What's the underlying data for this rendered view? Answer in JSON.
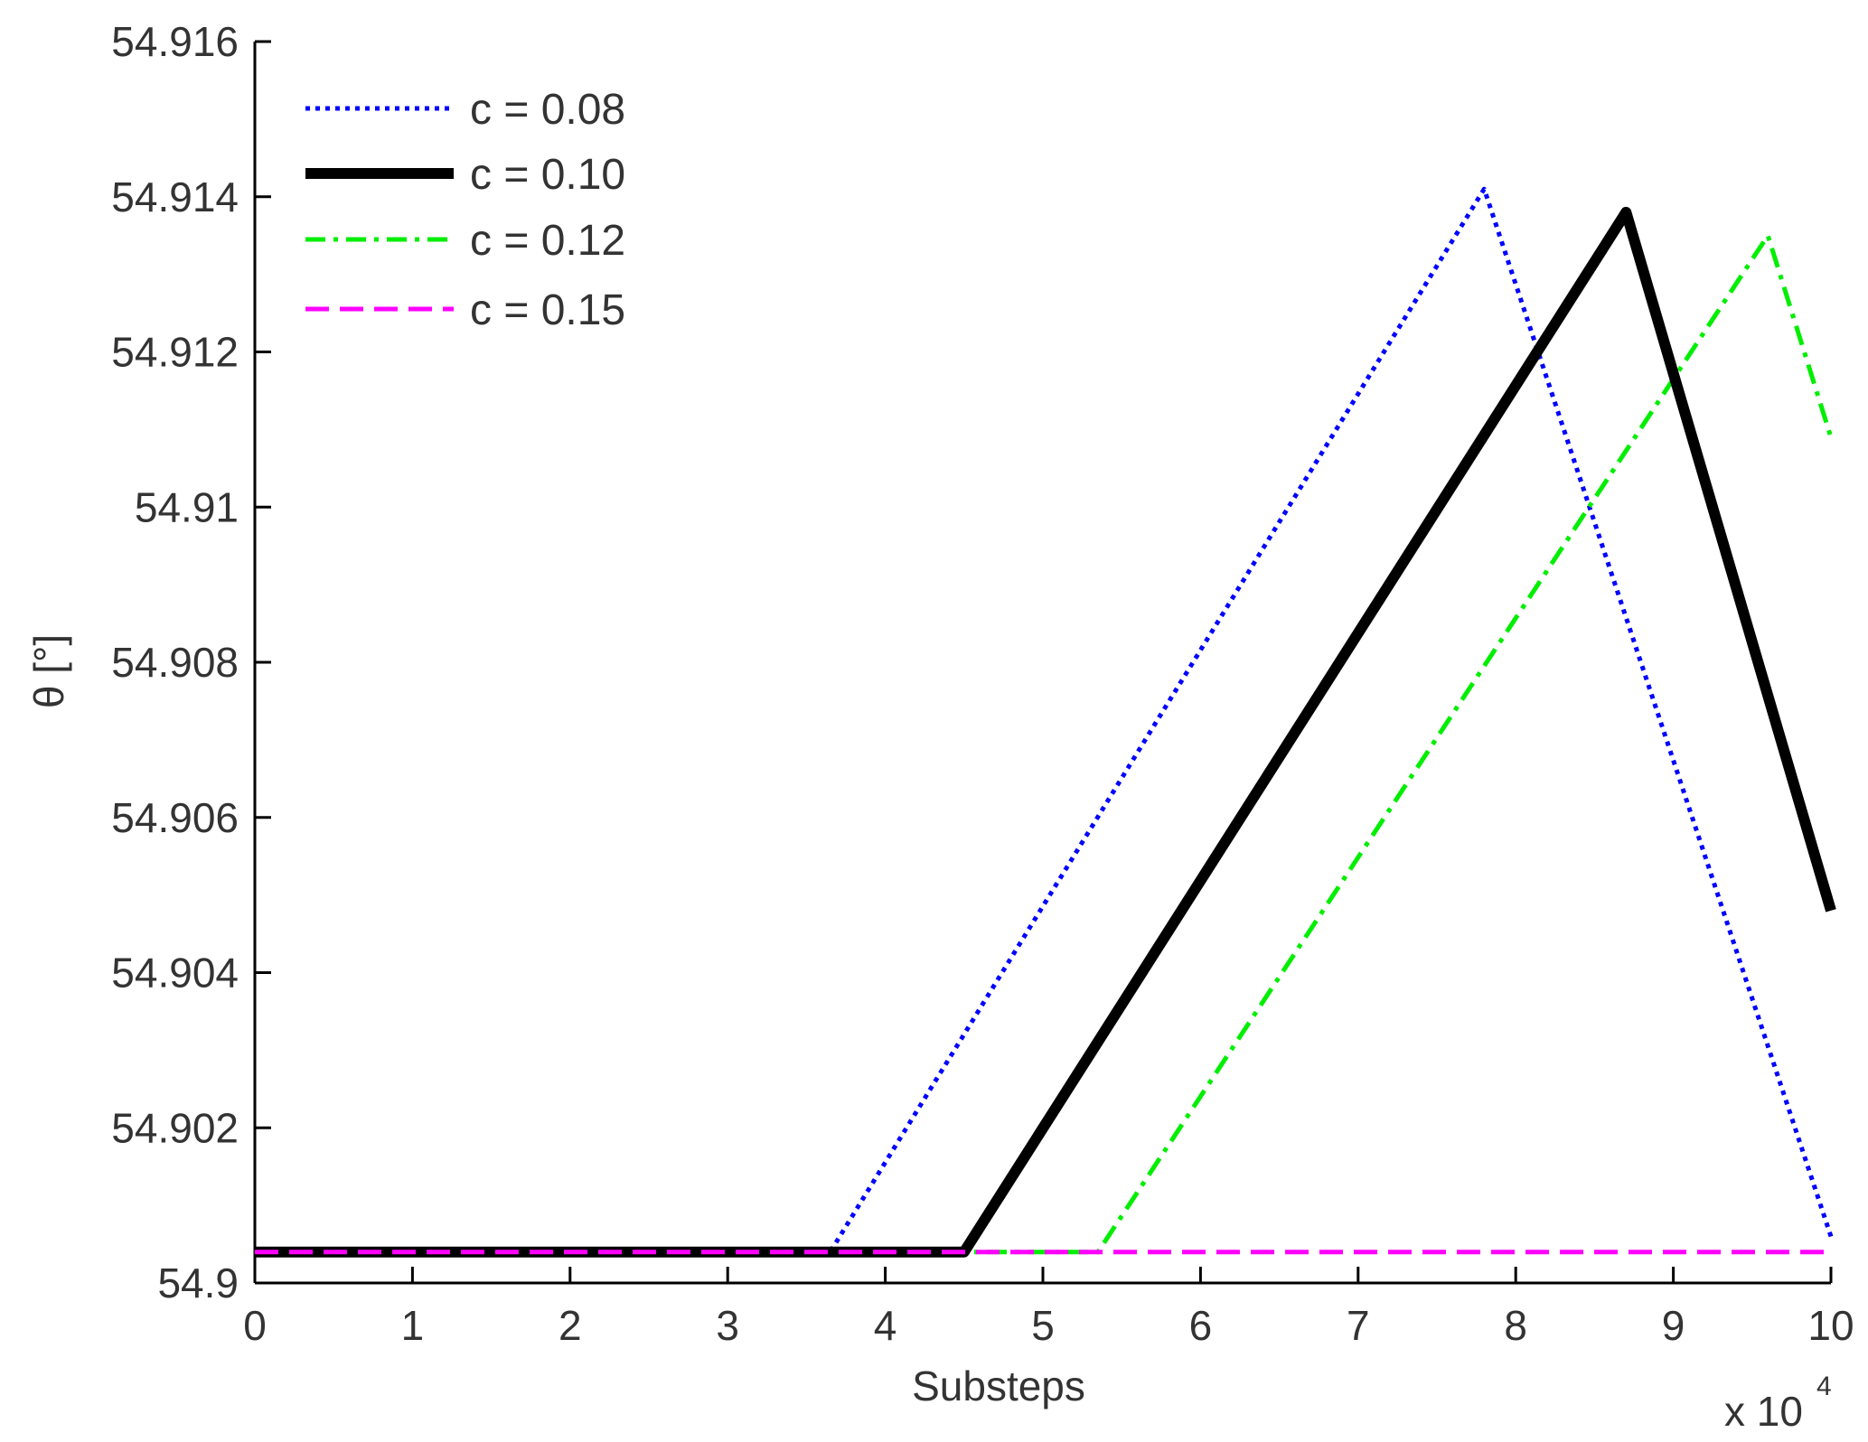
{
  "chart_data": {
    "type": "line",
    "title": "",
    "xlabel": "Substeps",
    "ylabel": "θ [°]",
    "xlim": [
      0,
      10
    ],
    "ylim": [
      54.9,
      54.916
    ],
    "x_multiplier_label": "x 10",
    "x_multiplier_exponent": "4",
    "x_ticks": [
      0,
      1,
      2,
      3,
      4,
      5,
      6,
      7,
      8,
      9,
      10
    ],
    "x_tick_labels": [
      "0",
      "1",
      "2",
      "3",
      "4",
      "5",
      "6",
      "7",
      "8",
      "9",
      "10"
    ],
    "y_ticks": [
      54.9,
      54.902,
      54.904,
      54.906,
      54.908,
      54.91,
      54.912,
      54.914,
      54.916
    ],
    "y_tick_labels": [
      "54.9",
      "54.902",
      "54.904",
      "54.906",
      "54.908",
      "54.91",
      "54.912",
      "54.914",
      "54.916"
    ],
    "grid": false,
    "legend_position": "top-left",
    "series": [
      {
        "name": "c = 0.08",
        "color": "#0000ff",
        "style": "dotted",
        "x": [
          0,
          3.65,
          7.8,
          10
        ],
        "y": [
          54.9004,
          54.9004,
          54.9141,
          54.9006
        ]
      },
      {
        "name": "c = 0.10",
        "color": "#000000",
        "style": "solid-thick",
        "x": [
          0,
          4.5,
          8.7,
          10
        ],
        "y": [
          54.9004,
          54.9004,
          54.9138,
          54.9048
        ]
      },
      {
        "name": "c = 0.12",
        "color": "#00ee00",
        "style": "dashdot",
        "x": [
          0,
          5.35,
          9.6,
          10
        ],
        "y": [
          54.9004,
          54.9004,
          54.9135,
          54.9109
        ]
      },
      {
        "name": "c = 0.15",
        "color": "#ff00ff",
        "style": "dashed",
        "x": [
          0,
          10
        ],
        "y": [
          54.9004,
          54.9004
        ]
      }
    ]
  }
}
